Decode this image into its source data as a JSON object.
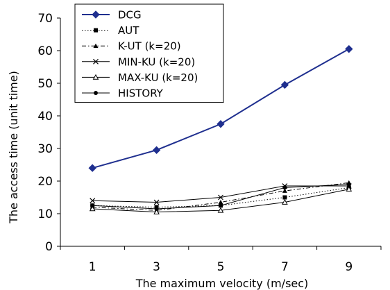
{
  "chart_data": {
    "type": "line",
    "title": "",
    "xlabel": "The maximum velocity (m/sec)",
    "ylabel": "The access time (unit time)",
    "categories": [
      1,
      3,
      5,
      7,
      9
    ],
    "ylim": [
      0,
      70
    ],
    "yticks": [
      0,
      10,
      20,
      30,
      40,
      50,
      60,
      70
    ],
    "grid": false,
    "legend_position": "top-left",
    "series": [
      {
        "name": "DCG",
        "values": [
          24,
          29.5,
          37.5,
          49.5,
          60.5
        ],
        "color": "#1f2f8f",
        "dash": "solid",
        "marker": "diamond-filled"
      },
      {
        "name": "AUT",
        "values": [
          12.5,
          12,
          12.5,
          15,
          18
        ],
        "color": "#000000",
        "dash": "dotted",
        "marker": "square-filled"
      },
      {
        "name": "K-UT (k=20)",
        "values": [
          12,
          11,
          13.5,
          17,
          19.5
        ],
        "color": "#000000",
        "dash": "dashdot",
        "marker": "triangle-filled"
      },
      {
        "name": "MIN-KU (k=20)",
        "values": [
          14,
          13.5,
          15,
          18.5,
          18.5
        ],
        "color": "#000000",
        "dash": "solid",
        "marker": "x"
      },
      {
        "name": "MAX-KU (k=20)",
        "values": [
          11.5,
          10.5,
          11,
          13.5,
          17.5
        ],
        "color": "#000000",
        "dash": "solid",
        "marker": "triangle-open"
      },
      {
        "name": "HISTORY",
        "values": [
          12.5,
          11.5,
          12.5,
          18,
          19
        ],
        "color": "#000000",
        "dash": "solid",
        "marker": "circle-filled"
      }
    ]
  }
}
